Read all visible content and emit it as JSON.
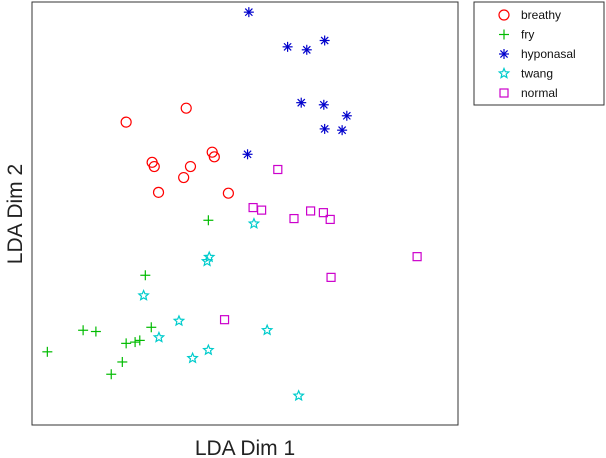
{
  "chart_data": {
    "type": "scatter",
    "title": "",
    "xlabel": "LDA Dim 1",
    "ylabel": "LDA Dim 2",
    "xlim": [
      0,
      100
    ],
    "ylim": [
      0,
      100
    ],
    "grid": false,
    "axis_ticks": false,
    "legend_placement": "outside-top-right",
    "series": [
      {
        "name": "breathy",
        "marker": "circle",
        "color": "#ff0000",
        "points": [
          {
            "x": 22.1,
            "y": 71.6
          },
          {
            "x": 36.2,
            "y": 74.9
          },
          {
            "x": 28.2,
            "y": 62.1
          },
          {
            "x": 28.7,
            "y": 61.1
          },
          {
            "x": 42.3,
            "y": 64.5
          },
          {
            "x": 42.8,
            "y": 63.4
          },
          {
            "x": 37.2,
            "y": 61.1
          },
          {
            "x": 35.6,
            "y": 58.5
          },
          {
            "x": 29.7,
            "y": 55.0
          },
          {
            "x": 46.1,
            "y": 54.8
          }
        ]
      },
      {
        "name": "fry",
        "marker": "plus",
        "color": "#00bb00",
        "points": [
          {
            "x": 41.4,
            "y": 48.4
          },
          {
            "x": 26.6,
            "y": 35.4
          },
          {
            "x": 28.0,
            "y": 23.1
          },
          {
            "x": 12.0,
            "y": 22.4
          },
          {
            "x": 15.0,
            "y": 22.1
          },
          {
            "x": 25.3,
            "y": 20.0
          },
          {
            "x": 22.1,
            "y": 19.3
          },
          {
            "x": 24.2,
            "y": 19.6
          },
          {
            "x": 3.6,
            "y": 17.3
          },
          {
            "x": 21.2,
            "y": 14.9
          },
          {
            "x": 18.6,
            "y": 12.0
          }
        ]
      },
      {
        "name": "hyponasal",
        "marker": "asterisk",
        "color": "#0000cc",
        "points": [
          {
            "x": 50.9,
            "y": 97.6
          },
          {
            "x": 68.7,
            "y": 90.9
          },
          {
            "x": 60.0,
            "y": 89.4
          },
          {
            "x": 64.5,
            "y": 88.7
          },
          {
            "x": 63.2,
            "y": 76.2
          },
          {
            "x": 68.5,
            "y": 75.7
          },
          {
            "x": 73.9,
            "y": 73.1
          },
          {
            "x": 68.7,
            "y": 70.0
          },
          {
            "x": 72.8,
            "y": 69.7
          },
          {
            "x": 50.6,
            "y": 64.0
          }
        ]
      },
      {
        "name": "twang",
        "marker": "star",
        "color": "#00cccc",
        "points": [
          {
            "x": 52.1,
            "y": 47.6
          },
          {
            "x": 41.6,
            "y": 39.7
          },
          {
            "x": 41.1,
            "y": 38.7
          },
          {
            "x": 26.2,
            "y": 30.6
          },
          {
            "x": 34.5,
            "y": 24.6
          },
          {
            "x": 29.8,
            "y": 20.7
          },
          {
            "x": 55.2,
            "y": 22.4
          },
          {
            "x": 41.4,
            "y": 17.7
          },
          {
            "x": 37.7,
            "y": 15.8
          },
          {
            "x": 62.6,
            "y": 6.9
          }
        ]
      },
      {
        "name": "normal",
        "marker": "square",
        "color": "#cc00cc",
        "points": [
          {
            "x": 57.7,
            "y": 60.4
          },
          {
            "x": 51.9,
            "y": 51.4
          },
          {
            "x": 53.9,
            "y": 50.8
          },
          {
            "x": 65.4,
            "y": 50.6
          },
          {
            "x": 68.4,
            "y": 50.2
          },
          {
            "x": 61.5,
            "y": 48.8
          },
          {
            "x": 70.0,
            "y": 48.6
          },
          {
            "x": 90.4,
            "y": 39.8
          },
          {
            "x": 70.2,
            "y": 34.9
          },
          {
            "x": 45.2,
            "y": 24.9
          }
        ]
      }
    ]
  }
}
